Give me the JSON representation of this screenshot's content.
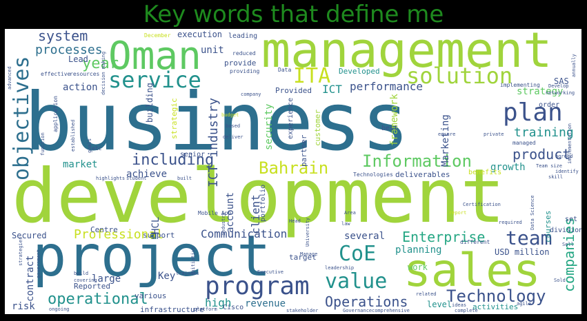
{
  "title": "Key words that define me",
  "colors": {
    "background": "#000000",
    "title": "#1e8a1e",
    "cloud_background": "#ffffff",
    "palette": [
      "#2d6f8e",
      "#5ec962",
      "#a0d43c",
      "#3b528b",
      "#440154",
      "#21918c",
      "#26a784"
    ]
  },
  "words": {
    "business": "business",
    "development": "development",
    "management": "management",
    "project": "project",
    "oman": "Oman",
    "sales": "sales",
    "service": "service",
    "solution": "solution",
    "program": "program",
    "objectives": "objectives",
    "plan": "plan",
    "ita": "ITA",
    "information": "Information",
    "bahrain": "Bahrain",
    "value": "value",
    "technology": "Technology",
    "team": "team",
    "coe": "CoE",
    "operational": "operational",
    "enterprise": "Enterprise",
    "including": "including",
    "system": "system",
    "processes": "processes",
    "year": "year",
    "training": "training",
    "product": "product",
    "companies": "companies",
    "operations": "Operations",
    "professional": "Professional",
    "communication": "Communication",
    "performance": "performance",
    "strategy": "strategy",
    "ict_top": "ICT",
    "ict_industry": "ICT industry",
    "unit": "unit",
    "action": "action",
    "market": "market",
    "achieve": "achieve",
    "growth": "growth",
    "security": "security",
    "client": "client",
    "account": "account",
    "framework": "framework",
    "marketing": "Marketing",
    "planning": "planning",
    "several": "several",
    "high": "high",
    "revenue": "revenue",
    "key": "Key",
    "large": "large",
    "contract": "contract",
    "risk": "risk",
    "secured": "Secured",
    "hcl": "HCL",
    "usd_million": "USD million",
    "level": "level",
    "execution": "execution",
    "lead": "Lead",
    "provide": "provide",
    "developed": "Developed",
    "provided": "Provided",
    "building": "building",
    "centre": "Centre",
    "deliverables": "deliverables",
    "sas": "SAS",
    "infrastructure": "infrastructure",
    "various": "various",
    "support": "support",
    "reported": "Reported",
    "work": "work",
    "target": "target",
    "activities": "activities",
    "courses": "courses",
    "benefits": "benefits",
    "partner": "partner",
    "customer": "customer",
    "portfolio": "portfolio",
    "experience": "experience",
    "leading": "leading",
    "strategic": "strategic",
    "order": "order",
    "set": "set",
    "division": "division",
    "best": "best",
    "senior": "senior",
    "technologies": "Technologies",
    "mobile_app": "Mobile App",
    "cisco": "Cisco",
    "december": "December",
    "decision_making": "decision making",
    "reduced": "reduced",
    "providing": "providing",
    "data": "Data",
    "effective": "effective",
    "resources": "resources",
    "application": "application",
    "implementing": "implementing",
    "networking": "networking",
    "develop": "Develop",
    "managed": "managed",
    "team_size": "Team size",
    "identify": "identify",
    "skill": "skill",
    "required": "required",
    "different": "different",
    "certification": "Certification",
    "data_science": "Data Science",
    "implementation": "implementation",
    "budget": "budget",
    "based": "based",
    "deliver": "deliver",
    "private": "private",
    "ensure": "ensure",
    "company": "company",
    "function": "function",
    "established": "established",
    "goals": "goals",
    "highlights": "highlights",
    "student": "student",
    "built": "built",
    "etc": "etc",
    "government": "government",
    "strategies": "strategies",
    "head": "Head",
    "law": "law",
    "area": "Area",
    "leadership": "leadership",
    "manage": "Manage",
    "university": "University",
    "trainees": "trainees",
    "executive": "Executive",
    "initiative": "initiative",
    "stakeholder": "stakeholder",
    "governance": "Governance",
    "comprehensive": "comprehensive",
    "platform": "platform",
    "sold": "Sold",
    "related": "related",
    "ideas": "ideas",
    "report": "report",
    "agreed": "agreed",
    "annually": "annually",
    "advanced": "advanced",
    "industry": "industry",
    "ongoing": "ongoing",
    "build": "build",
    "covering": "covering",
    "sell": "Sell",
    "complete": "complete",
    "agile": "agile"
  }
}
